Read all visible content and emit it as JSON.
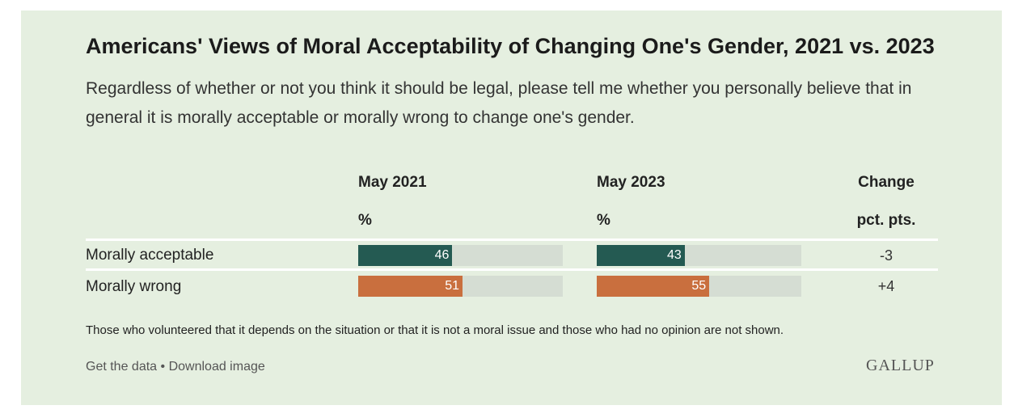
{
  "title": "Americans' Views of Moral Acceptability of Changing One's Gender, 2021 vs. 2023",
  "question": "Regardless of whether or not you think it should be legal, please tell me whether you personally believe that in general it is morally acceptable or morally wrong to change one's gender.",
  "columns": {
    "col1": {
      "label": "May 2021",
      "unit": "%"
    },
    "col2": {
      "label": "May 2023",
      "unit": "%"
    },
    "col3": {
      "label": "Change",
      "unit": "pct. pts."
    }
  },
  "rows": [
    {
      "label": "Morally acceptable",
      "v2021": "46",
      "v2023": "43",
      "change": "-3"
    },
    {
      "label": "Morally wrong",
      "v2021": "51",
      "v2023": "55",
      "change": "+4"
    }
  ],
  "chart_data": {
    "type": "bar",
    "title": "Americans' Views of Moral Acceptability of Changing One's Gender, 2021 vs. 2023",
    "categories": [
      "Morally acceptable",
      "Morally wrong"
    ],
    "series": [
      {
        "name": "May 2021",
        "values": [
          46,
          51
        ]
      },
      {
        "name": "May 2023",
        "values": [
          43,
          55
        ]
      }
    ],
    "change": [
      -3,
      4
    ],
    "unit": "%",
    "ylim": [
      0,
      100
    ]
  },
  "colors": {
    "acceptable": "#245a52",
    "wrong": "#c96f3e",
    "track": "#d5ddd3",
    "background": "#e5efe0"
  },
  "footnote": "Those who volunteered that it depends on the situation or that it is not a moral issue and those who had no opinion are not shown.",
  "links": {
    "data": "Get the data",
    "separator": "•",
    "image": "Download image"
  },
  "logo": "GALLUP"
}
